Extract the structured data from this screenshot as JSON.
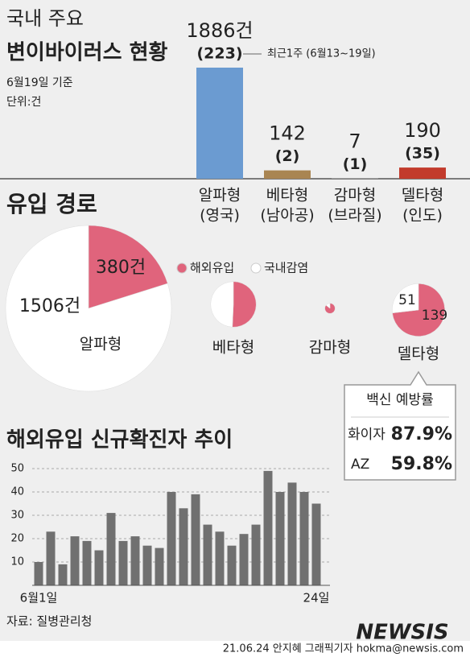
{
  "header": {
    "title_lines": [
      "국내 주요",
      "변이바이러스 현황"
    ],
    "notes": [
      "6월19일 기준",
      "단위:건"
    ]
  },
  "chart_data": [
    {
      "type": "bar",
      "categories": [
        "알파형",
        "베타형",
        "감마형",
        "델타형"
      ],
      "category_notes": [
        "(영국)",
        "(남아공)",
        "(브라질)",
        "(인도)"
      ],
      "values": [
        1886,
        142,
        7,
        190
      ],
      "value_labels": [
        "1886건",
        "142",
        "7",
        "190"
      ],
      "colors": [
        "#6b9bd1",
        "#a98552",
        "#9a9a9a",
        "#c23b2c"
      ],
      "recent_week": {
        "values": [
          223,
          2,
          1,
          35
        ],
        "value_labels": [
          "(223)",
          "(2)",
          "(1)",
          "(35)"
        ]
      },
      "annotation": "최근1주 (6월13~19일)"
    },
    {
      "type": "pie",
      "title": "유입 경로",
      "series": [
        {
          "name": "해외유입",
          "color": "#e0647c"
        },
        {
          "name": "국내감염",
          "color": "#ffffff"
        }
      ],
      "pies": [
        {
          "label": "알파형",
          "values": [
            380,
            1506
          ],
          "value_labels": [
            "380건",
            "1506건"
          ]
        },
        {
          "label": "베타형",
          "values": [
            72,
            70
          ]
        },
        {
          "label": "감마형",
          "values": [
            6,
            1
          ]
        },
        {
          "label": "델타형",
          "values": [
            139,
            51
          ]
        }
      ]
    },
    {
      "type": "bar",
      "title": "해외유입 신규확진자 추이",
      "categories": [
        "6월1일",
        null,
        null,
        null,
        null,
        null,
        null,
        null,
        null,
        null,
        null,
        null,
        null,
        null,
        null,
        null,
        null,
        null,
        null,
        null,
        null,
        null,
        null,
        "24일"
      ],
      "values": [
        10,
        23,
        9,
        21,
        19,
        15,
        31,
        19,
        21,
        17,
        16,
        40,
        33,
        39,
        26,
        23,
        17,
        22,
        26,
        49,
        40,
        44,
        40,
        35
      ],
      "color": "#707070",
      "ylim": [
        0,
        50
      ],
      "yticks": [
        10,
        20,
        30,
        40,
        50
      ],
      "grid": true
    }
  ],
  "vaccine": {
    "title": "백신 예방률",
    "rows": [
      [
        "화이자",
        "87.9%"
      ],
      [
        "AZ",
        "59.8%"
      ]
    ]
  },
  "source": "자료: 질병관리청",
  "credit": "21.06.24 안지혜 그래픽기자 hokma@newsis.com",
  "watermark": "NEWSIS"
}
